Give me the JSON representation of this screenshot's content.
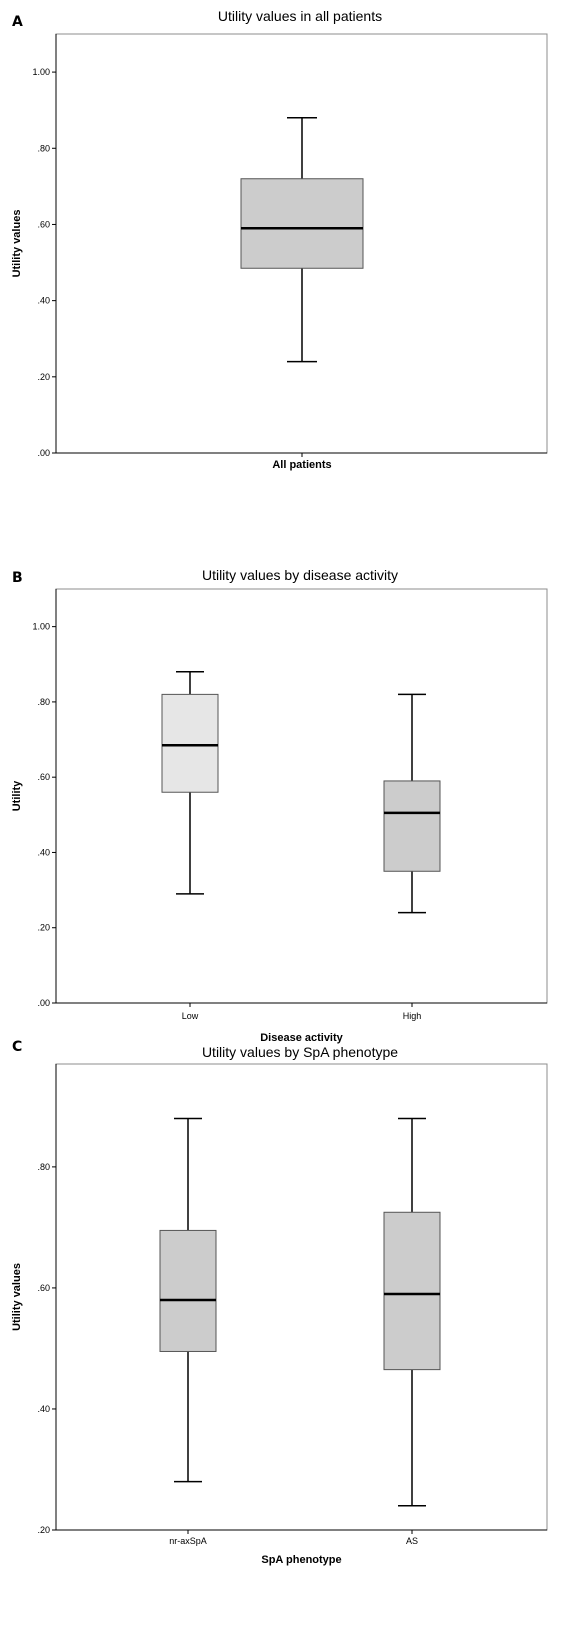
{
  "chart_data": [
    {
      "panel": "A",
      "type": "box",
      "title": "Utility values in all patients",
      "xlabel": "",
      "ylabel": "Utility values",
      "ylim": [
        0.0,
        1.1
      ],
      "yticks": [
        ".00",
        ".20",
        ".40",
        ".60",
        ".80",
        "1.00"
      ],
      "ytick_values": [
        0.0,
        0.2,
        0.4,
        0.6,
        0.8,
        1.0
      ],
      "categories": [
        "All patients"
      ],
      "boxes": [
        {
          "category": "All patients",
          "min": 0.24,
          "q1": 0.485,
          "median": 0.59,
          "q3": 0.72,
          "max": 0.88,
          "fill": "#cccccc"
        }
      ]
    },
    {
      "panel": "B",
      "type": "box",
      "title": "Utility values by disease activity",
      "xlabel": "Disease activity",
      "ylabel": "Utility",
      "ylim": [
        0.0,
        1.1
      ],
      "yticks": [
        ".00",
        ".20",
        ".40",
        ".60",
        ".80",
        "1.00"
      ],
      "ytick_values": [
        0.0,
        0.2,
        0.4,
        0.6,
        0.8,
        1.0
      ],
      "categories": [
        "Low",
        "High"
      ],
      "boxes": [
        {
          "category": "Low",
          "min": 0.29,
          "q1": 0.56,
          "median": 0.685,
          "q3": 0.82,
          "max": 0.88,
          "fill": "#e6e6e6"
        },
        {
          "category": "High",
          "min": 0.24,
          "q1": 0.35,
          "median": 0.505,
          "q3": 0.59,
          "max": 0.82,
          "fill": "#cccccc"
        }
      ]
    },
    {
      "panel": "C",
      "type": "box",
      "title": "Utility values by SpA phenotype",
      "xlabel": "SpA phenotype",
      "ylabel": "Utility values",
      "ylim": [
        0.2,
        0.97
      ],
      "yticks": [
        ".20",
        ".40",
        ".60",
        ".80"
      ],
      "ytick_values": [
        0.2,
        0.4,
        0.6,
        0.8
      ],
      "categories": [
        "nr-axSpA",
        "AS"
      ],
      "boxes": [
        {
          "category": "nr-axSpA",
          "min": 0.28,
          "q1": 0.495,
          "median": 0.58,
          "q3": 0.695,
          "max": 0.88,
          "fill": "#cccccc"
        },
        {
          "category": "AS",
          "min": 0.24,
          "q1": 0.465,
          "median": 0.59,
          "q3": 0.725,
          "max": 0.88,
          "fill": "#cccccc"
        }
      ]
    }
  ]
}
